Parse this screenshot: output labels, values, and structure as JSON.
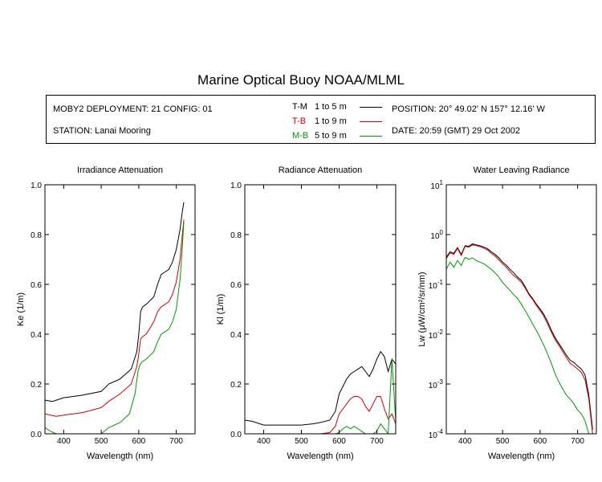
{
  "header": {
    "title": "Marine Optical Buoy NOAA/MLML"
  },
  "info": {
    "deployment": "MOBY2 DEPLOYMENT: 21 CONFIG: 01",
    "station": "STATION: Lanai Mooring",
    "position": "POSITION: 20° 49.02' N   157° 12.16' W",
    "date": "DATE: 20:59 (GMT) 29 Oct 2002",
    "legend": [
      {
        "code": "T-M",
        "range": "1 to 5  m",
        "color": "#000000"
      },
      {
        "code": "T-B",
        "range": "1 to 9  m",
        "color": "#d00000"
      },
      {
        "code": "M-B",
        "range": "5 to 9  m",
        "color": "#009900"
      }
    ]
  },
  "chart_data": [
    {
      "type": "line",
      "title": "Irradiance Attenuation",
      "xlabel": "Wavelength (nm)",
      "ylabel": "Ke  (1/m)",
      "xlim": [
        350,
        750
      ],
      "ylim": [
        0,
        1.0
      ],
      "xticks": [
        400,
        500,
        600,
        700
      ],
      "yticks": [
        "0.0",
        "0.2",
        "0.4",
        "0.6",
        "0.8",
        "1.0"
      ],
      "series": [
        {
          "name": "T-M",
          "color": "#000000",
          "x": [
            350,
            370,
            400,
            450,
            500,
            520,
            550,
            580,
            595,
            600,
            605,
            610,
            620,
            640,
            650,
            660,
            670,
            680,
            690,
            700,
            710,
            715,
            720
          ],
          "y": [
            0.135,
            0.13,
            0.145,
            0.155,
            0.17,
            0.2,
            0.22,
            0.26,
            0.33,
            0.4,
            0.49,
            0.51,
            0.52,
            0.55,
            0.6,
            0.64,
            0.65,
            0.66,
            0.69,
            0.74,
            0.82,
            0.88,
            0.93
          ]
        },
        {
          "name": "T-B",
          "color": "#d00000",
          "x": [
            350,
            380,
            400,
            450,
            500,
            520,
            550,
            580,
            595,
            600,
            605,
            610,
            620,
            640,
            650,
            660,
            670,
            680,
            690,
            700,
            710,
            715,
            720
          ],
          "y": [
            0.08,
            0.07,
            0.075,
            0.085,
            0.105,
            0.13,
            0.16,
            0.2,
            0.27,
            0.32,
            0.38,
            0.39,
            0.4,
            0.45,
            0.49,
            0.51,
            0.52,
            0.53,
            0.56,
            0.61,
            0.7,
            0.78,
            0.86
          ]
        },
        {
          "name": "M-B",
          "color": "#009900",
          "x": [
            350,
            365,
            380,
            400,
            450,
            500,
            520,
            550,
            575,
            590,
            598,
            604,
            610,
            620,
            640,
            650,
            660,
            670,
            680,
            690,
            700,
            710,
            715,
            720
          ],
          "y": [
            0.025,
            0.01,
            0.0,
            0.0,
            0.0,
            0.0,
            0.025,
            0.045,
            0.08,
            0.16,
            0.25,
            0.28,
            0.29,
            0.3,
            0.33,
            0.37,
            0.4,
            0.41,
            0.42,
            0.45,
            0.5,
            0.62,
            0.72,
            0.85
          ]
        }
      ]
    },
    {
      "type": "line",
      "title": "Radiance Attenuation",
      "xlabel": "Wavelength (nm)",
      "ylabel": "Kl  (1/m)",
      "xlim": [
        350,
        750
      ],
      "ylim": [
        0,
        1.0
      ],
      "xticks": [
        400,
        500,
        600,
        700
      ],
      "yticks": [
        "0.0",
        "0.2",
        "0.4",
        "0.6",
        "0.8",
        "1.0"
      ],
      "series": [
        {
          "name": "T-M",
          "color": "#000000",
          "x": [
            350,
            370,
            400,
            450,
            500,
            530,
            550,
            575,
            590,
            600,
            610,
            620,
            630,
            640,
            650,
            660,
            670,
            680,
            690,
            700,
            710,
            720,
            730,
            740,
            750
          ],
          "y": [
            0.055,
            0.05,
            0.035,
            0.035,
            0.035,
            0.04,
            0.045,
            0.055,
            0.09,
            0.16,
            0.19,
            0.22,
            0.24,
            0.25,
            0.26,
            0.27,
            0.25,
            0.23,
            0.26,
            0.3,
            0.33,
            0.31,
            0.25,
            0.3,
            0.28
          ]
        },
        {
          "name": "T-B",
          "color": "#d00000",
          "x": [
            350,
            400,
            450,
            500,
            550,
            575,
            590,
            600,
            610,
            620,
            630,
            640,
            650,
            660,
            670,
            680,
            690,
            700,
            710,
            720,
            730,
            740,
            750
          ],
          "y": [
            0.0,
            0.0,
            0.0,
            0.0,
            0.0,
            0.005,
            0.03,
            0.08,
            0.1,
            0.12,
            0.14,
            0.15,
            0.15,
            0.14,
            0.11,
            0.09,
            0.12,
            0.15,
            0.15,
            0.1,
            0.06,
            0.08,
            0.04
          ]
        },
        {
          "name": "M-B",
          "color": "#009900",
          "x": [
            350,
            400,
            500,
            570,
            590,
            600,
            610,
            620,
            630,
            640,
            650,
            660,
            670,
            680,
            690,
            700,
            710,
            720,
            730,
            740,
            750
          ],
          "y": [
            0.0,
            0.0,
            0.0,
            0.0,
            0.0,
            0.005,
            0.02,
            0.03,
            0.02,
            0.03,
            0.02,
            0.01,
            0.0,
            0.0,
            0.0,
            0.01,
            0.04,
            0.02,
            0.0,
            0.3,
            0.05
          ]
        }
      ]
    },
    {
      "type": "line",
      "title": "Water Leaving Radiance",
      "xlabel": "Wavelength (nm)",
      "ylabel": "Lw  (μW/cm²/sr/nm)",
      "xlim": [
        350,
        750
      ],
      "ylim_log10": [
        -4,
        1
      ],
      "xticks": [
        400,
        500,
        600,
        700
      ],
      "yticks": [
        {
          "base": "10",
          "exp": "1"
        },
        {
          "base": "10",
          "exp": "0"
        },
        {
          "base": "10",
          "exp": "-1"
        },
        {
          "base": "10",
          "exp": "-2"
        },
        {
          "base": "10",
          "exp": "-3"
        },
        {
          "base": "10",
          "exp": "-4"
        }
      ],
      "series": [
        {
          "name": "T-M",
          "color": "#000000",
          "x": [
            350,
            360,
            370,
            380,
            390,
            400,
            410,
            420,
            430,
            440,
            450,
            460,
            470,
            480,
            490,
            500,
            510,
            520,
            530,
            540,
            550,
            560,
            570,
            580,
            590,
            600,
            610,
            620,
            630,
            640,
            650,
            660,
            670,
            680,
            690,
            700,
            710,
            720,
            730,
            740
          ],
          "y": [
            0.35,
            0.45,
            0.42,
            0.55,
            0.4,
            0.6,
            0.58,
            0.65,
            0.62,
            0.6,
            0.56,
            0.52,
            0.45,
            0.4,
            0.34,
            0.28,
            0.24,
            0.2,
            0.17,
            0.14,
            0.12,
            0.09,
            0.065,
            0.052,
            0.04,
            0.032,
            0.025,
            0.018,
            0.012,
            0.0085,
            0.0065,
            0.005,
            0.0038,
            0.003,
            0.0027,
            0.0023,
            0.002,
            0.0015,
            0.0006,
            0.00012
          ]
        },
        {
          "name": "T-B",
          "color": "#d00000",
          "x": [
            350,
            360,
            370,
            380,
            390,
            400,
            410,
            420,
            430,
            440,
            450,
            460,
            470,
            480,
            490,
            500,
            510,
            520,
            530,
            540,
            550,
            560,
            570,
            580,
            590,
            600,
            610,
            620,
            630,
            640,
            650,
            660,
            670,
            680,
            690,
            700,
            710,
            720,
            730,
            740
          ],
          "y": [
            0.33,
            0.43,
            0.4,
            0.53,
            0.38,
            0.58,
            0.56,
            0.62,
            0.6,
            0.57,
            0.53,
            0.49,
            0.42,
            0.37,
            0.31,
            0.26,
            0.22,
            0.18,
            0.15,
            0.13,
            0.11,
            0.085,
            0.062,
            0.05,
            0.038,
            0.03,
            0.023,
            0.016,
            0.011,
            0.0078,
            0.006,
            0.0045,
            0.0034,
            0.0026,
            0.0023,
            0.002,
            0.0017,
            0.0012,
            0.0005,
            0.0001
          ]
        },
        {
          "name": "M-B",
          "color": "#009900",
          "x": [
            350,
            360,
            370,
            380,
            390,
            400,
            410,
            420,
            430,
            440,
            450,
            460,
            470,
            480,
            490,
            500,
            510,
            520,
            530,
            540,
            550,
            560,
            570,
            580,
            590,
            600,
            610,
            620,
            630,
            640,
            650,
            660,
            670,
            680,
            690,
            700,
            710,
            720,
            730,
            735
          ],
          "y": [
            0.2,
            0.28,
            0.22,
            0.3,
            0.24,
            0.35,
            0.32,
            0.34,
            0.3,
            0.28,
            0.26,
            0.23,
            0.2,
            0.17,
            0.14,
            0.11,
            0.09,
            0.075,
            0.062,
            0.052,
            0.04,
            0.03,
            0.022,
            0.016,
            0.012,
            0.0085,
            0.006,
            0.004,
            0.0026,
            0.0016,
            0.0011,
            0.0008,
            0.0006,
            0.0005,
            0.0004,
            0.0003,
            0.00025,
            0.00018,
            0.0001,
            0.0001
          ]
        }
      ]
    }
  ]
}
